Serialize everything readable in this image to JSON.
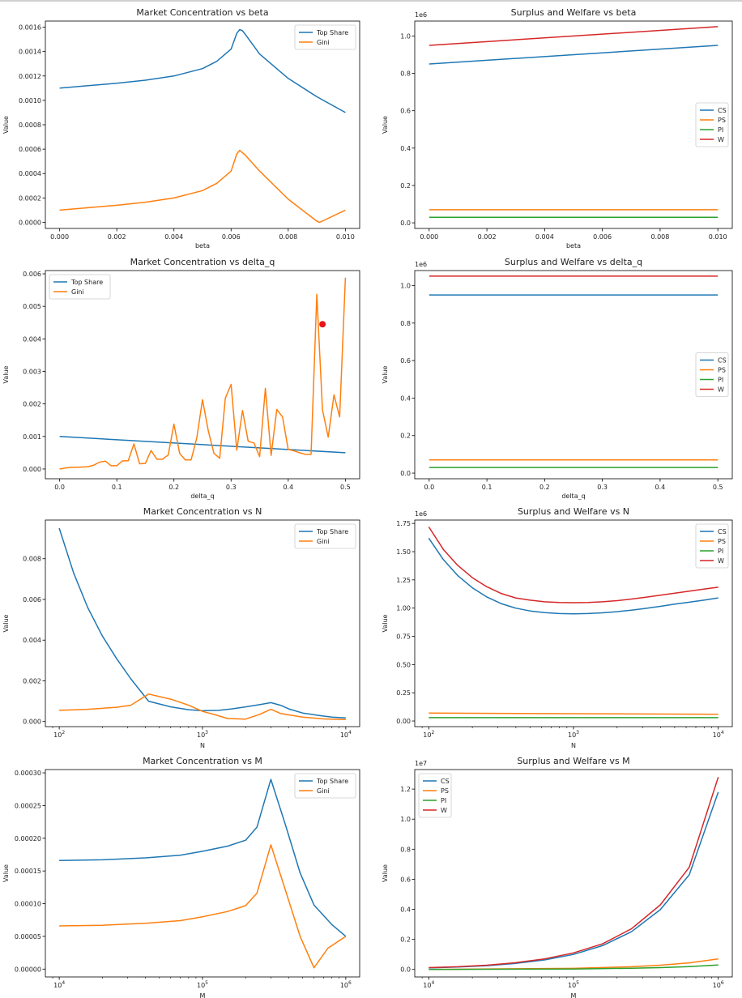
{
  "figure": {
    "domain": "multi-panel line charts"
  },
  "chart_data": [
    {
      "type": "line",
      "title": "Market Concentration vs beta",
      "xlabel": "beta",
      "ylabel": "Value",
      "xscale": "linear",
      "xlim": [
        -0.0005,
        0.0105
      ],
      "ylim": [
        -5e-05,
        0.00165
      ],
      "xticks": [
        0,
        0.002,
        0.004,
        0.006,
        0.008,
        0.01
      ],
      "xtick_labels": [
        "0.000",
        "0.002",
        "0.004",
        "0.006",
        "0.008",
        "0.010"
      ],
      "yticks": [
        0,
        0.0002,
        0.0004,
        0.0006,
        0.0008,
        0.001,
        0.0012,
        0.0014,
        0.0016
      ],
      "ytick_labels": [
        "0.0000",
        "0.0002",
        "0.0004",
        "0.0006",
        "0.0008",
        "0.0010",
        "0.0012",
        "0.0014",
        "0.0016"
      ],
      "offset_label": "",
      "legend_loc": "top-right",
      "series": [
        {
          "name": "Top Share",
          "color": "#1f77b4",
          "x": [
            0,
            0.001,
            0.002,
            0.003,
            0.004,
            0.005,
            0.0055,
            0.006,
            0.0062,
            0.0063,
            0.0064,
            0.0065,
            0.007,
            0.008,
            0.009,
            0.01
          ],
          "y": [
            0.0011,
            0.00112,
            0.00114,
            0.001165,
            0.0012,
            0.00126,
            0.00132,
            0.00142,
            0.00155,
            0.00158,
            0.00157,
            0.00154,
            0.00138,
            0.00118,
            0.00103,
            0.0009
          ]
        },
        {
          "name": "Gini",
          "color": "#ff7f0e",
          "x": [
            0,
            0.001,
            0.002,
            0.003,
            0.004,
            0.005,
            0.0055,
            0.006,
            0.0062,
            0.0063,
            0.0065,
            0.007,
            0.008,
            0.009,
            0.0091,
            0.01
          ],
          "y": [
            0.0001,
            0.00012,
            0.00014,
            0.000165,
            0.0002,
            0.00026,
            0.00032,
            0.00042,
            0.00056,
            0.00059,
            0.00055,
            0.00042,
            0.00019,
            1e-05,
            0.0,
            0.0001
          ]
        }
      ]
    },
    {
      "type": "line",
      "title": "Surplus and Welfare vs beta",
      "xlabel": "beta",
      "ylabel": "Value",
      "xscale": "linear",
      "xlim": [
        -0.0005,
        0.0105
      ],
      "ylim": [
        -0.03,
        1.08
      ],
      "xticks": [
        0,
        0.002,
        0.004,
        0.006,
        0.008,
        0.01
      ],
      "xtick_labels": [
        "0.000",
        "0.002",
        "0.004",
        "0.006",
        "0.008",
        "0.010"
      ],
      "yticks": [
        0,
        0.2,
        0.4,
        0.6,
        0.8,
        1.0
      ],
      "ytick_labels": [
        "0.0",
        "0.2",
        "0.4",
        "0.6",
        "0.8",
        "1.0"
      ],
      "offset_label": "1e6",
      "legend_loc": "center-right",
      "series": [
        {
          "name": "CS",
          "color": "#1f77b4",
          "x": [
            0,
            0.01
          ],
          "y": [
            0.85,
            0.95
          ]
        },
        {
          "name": "PS",
          "color": "#ff7f0e",
          "x": [
            0,
            0.01
          ],
          "y": [
            0.07,
            0.07
          ]
        },
        {
          "name": "PI",
          "color": "#2ca02c",
          "x": [
            0,
            0.01
          ],
          "y": [
            0.03,
            0.03
          ]
        },
        {
          "name": "W",
          "color": "#d62728",
          "x": [
            0,
            0.01
          ],
          "y": [
            0.95,
            1.05
          ]
        }
      ]
    },
    {
      "type": "line",
      "title": "Market Concentration vs delta_q",
      "xlabel": "delta_q",
      "ylabel": "Value",
      "xscale": "linear",
      "xlim": [
        -0.025,
        0.525
      ],
      "ylim": [
        -0.0003,
        0.0061
      ],
      "xticks": [
        0,
        0.1,
        0.2,
        0.3,
        0.4,
        0.5
      ],
      "xtick_labels": [
        "0.0",
        "0.1",
        "0.2",
        "0.3",
        "0.4",
        "0.5"
      ],
      "yticks": [
        0,
        0.001,
        0.002,
        0.003,
        0.004,
        0.005,
        0.006
      ],
      "ytick_labels": [
        "0.000",
        "0.001",
        "0.002",
        "0.003",
        "0.004",
        "0.005",
        "0.006"
      ],
      "offset_label": "",
      "legend_loc": "top-left",
      "markers": [
        {
          "x": 0.46,
          "y": 0.00445,
          "color": "#e8141b"
        }
      ],
      "series": [
        {
          "name": "Top Share",
          "color": "#1f77b4",
          "x": [
            0,
            0.5
          ],
          "y": [
            0.001,
            0.0005
          ]
        },
        {
          "name": "Gini",
          "color": "#ff7f0e",
          "x": [
            0,
            0.01,
            0.02,
            0.03,
            0.04,
            0.05,
            0.06,
            0.07,
            0.08,
            0.09,
            0.1,
            0.11,
            0.12,
            0.13,
            0.14,
            0.15,
            0.16,
            0.17,
            0.18,
            0.19,
            0.2,
            0.21,
            0.22,
            0.23,
            0.24,
            0.25,
            0.26,
            0.27,
            0.28,
            0.29,
            0.3,
            0.31,
            0.32,
            0.33,
            0.34,
            0.35,
            0.36,
            0.37,
            0.38,
            0.39,
            0.4,
            0.41,
            0.42,
            0.43,
            0.44,
            0.45,
            0.46,
            0.47,
            0.48,
            0.49,
            0.5
          ],
          "y": [
            0.0,
            3e-05,
            5e-05,
            5e-05,
            6e-05,
            7e-05,
            0.00012,
            0.00021,
            0.00024,
            0.0001,
            0.0001,
            0.00025,
            0.00025,
            0.00077,
            0.00016,
            0.00017,
            0.00057,
            0.0003,
            0.0003,
            0.00043,
            0.00138,
            0.00048,
            0.00028,
            0.00028,
            0.00095,
            0.00213,
            0.00118,
            0.00048,
            0.00033,
            0.00218,
            0.0026,
            0.00058,
            0.0018,
            0.00085,
            0.0008,
            0.00038,
            0.00248,
            0.00042,
            0.00183,
            0.0016,
            0.0006,
            0.00056,
            0.0005,
            0.00045,
            0.00045,
            0.00537,
            0.00182,
            0.00098,
            0.00228,
            0.0016,
            0.00588
          ]
        }
      ]
    },
    {
      "type": "line",
      "title": "Surplus and Welfare vs delta_q",
      "xlabel": "delta_q",
      "ylabel": "Value",
      "xscale": "linear",
      "xlim": [
        -0.025,
        0.525
      ],
      "ylim": [
        -0.03,
        1.08
      ],
      "xticks": [
        0,
        0.1,
        0.2,
        0.3,
        0.4,
        0.5
      ],
      "xtick_labels": [
        "0.0",
        "0.1",
        "0.2",
        "0.3",
        "0.4",
        "0.5"
      ],
      "yticks": [
        0,
        0.2,
        0.4,
        0.6,
        0.8,
        1.0
      ],
      "ytick_labels": [
        "0.0",
        "0.2",
        "0.4",
        "0.6",
        "0.8",
        "1.0"
      ],
      "offset_label": "1e6",
      "legend_loc": "center-right",
      "series": [
        {
          "name": "CS",
          "color": "#1f77b4",
          "x": [
            0,
            0.5
          ],
          "y": [
            0.95,
            0.95
          ]
        },
        {
          "name": "PS",
          "color": "#ff7f0e",
          "x": [
            0,
            0.5
          ],
          "y": [
            0.07,
            0.07
          ]
        },
        {
          "name": "PI",
          "color": "#2ca02c",
          "x": [
            0,
            0.5
          ],
          "y": [
            0.03,
            0.03
          ]
        },
        {
          "name": "W",
          "color": "#d62728",
          "x": [
            0,
            0.5
          ],
          "y": [
            1.05,
            1.05
          ]
        }
      ]
    },
    {
      "type": "line",
      "title": "Market Concentration vs N",
      "xlabel": "N",
      "ylabel": "Value",
      "xscale": "log",
      "xlim": [
        80,
        12500
      ],
      "ylim": [
        -0.00025,
        0.0099
      ],
      "xticks": [
        100,
        1000,
        10000
      ],
      "xtick_labels": [
        "10",
        "10",
        "10"
      ],
      "xtick_exps": [
        "2",
        "3",
        "4"
      ],
      "yticks": [
        0,
        0.002,
        0.004,
        0.006,
        0.008
      ],
      "ytick_labels": [
        "0.000",
        "0.002",
        "0.004",
        "0.006",
        "0.008"
      ],
      "offset_label": "",
      "legend_loc": "top-right",
      "series": [
        {
          "name": "Top Share",
          "color": "#1f77b4",
          "x": [
            100,
            126,
            158,
            200,
            251,
            316,
            420,
            600,
            800,
            1000,
            1300,
            1600,
            2000,
            2500,
            3000,
            3500,
            4000,
            5000,
            6500,
            8000,
            10000
          ],
          "y": [
            0.0095,
            0.0073,
            0.0056,
            0.0042,
            0.0031,
            0.0021,
            0.001,
            0.00072,
            0.00058,
            0.00053,
            0.00055,
            0.00062,
            0.00072,
            0.00083,
            0.00093,
            0.0008,
            0.00062,
            0.00042,
            0.0003,
            0.00022,
            0.00018
          ]
        },
        {
          "name": "Gini",
          "color": "#ff7f0e",
          "x": [
            100,
            158,
            251,
            316,
            420,
            600,
            800,
            1000,
            1200,
            1500,
            2000,
            2500,
            3000,
            3500,
            5000,
            7000,
            10000
          ],
          "y": [
            0.00055,
            0.0006,
            0.0007,
            0.0008,
            0.00135,
            0.0011,
            0.0008,
            0.0005,
            0.00035,
            0.00015,
            0.00012,
            0.00035,
            0.0006,
            0.0004,
            0.00022,
            0.00013,
            0.0001
          ]
        }
      ]
    },
    {
      "type": "line",
      "title": "Surplus and Welfare vs N",
      "xlabel": "N",
      "ylabel": "Value",
      "xscale": "log",
      "xlim": [
        80,
        12500
      ],
      "ylim": [
        -0.05,
        1.78
      ],
      "xticks": [
        100,
        1000,
        10000
      ],
      "xtick_labels": [
        "10",
        "10",
        "10"
      ],
      "xtick_exps": [
        "2",
        "3",
        "4"
      ],
      "yticks": [
        0,
        0.25,
        0.5,
        0.75,
        1.0,
        1.25,
        1.5,
        1.75
      ],
      "ytick_labels": [
        "0.00",
        "0.25",
        "0.50",
        "0.75",
        "1.00",
        "1.25",
        "1.50",
        "1.75"
      ],
      "offset_label": "1e6",
      "legend_loc": "top-right",
      "series": [
        {
          "name": "CS",
          "color": "#1f77b4",
          "x": [
            100,
            126,
            158,
            200,
            251,
            316,
            398,
            501,
            631,
            794,
            1000,
            1259,
            1585,
            1995,
            2512,
            3162,
            3981,
            5012,
            6310,
            7943,
            10000
          ],
          "y": [
            1.62,
            1.43,
            1.29,
            1.18,
            1.1,
            1.04,
            1.0,
            0.975,
            0.96,
            0.952,
            0.95,
            0.952,
            0.958,
            0.968,
            0.982,
            0.998,
            1.016,
            1.035,
            1.052,
            1.07,
            1.09
          ]
        },
        {
          "name": "PS",
          "color": "#ff7f0e",
          "x": [
            100,
            10000
          ],
          "y": [
            0.07,
            0.06
          ]
        },
        {
          "name": "PI",
          "color": "#2ca02c",
          "x": [
            100,
            10000
          ],
          "y": [
            0.03,
            0.03
          ]
        },
        {
          "name": "W",
          "color": "#d62728",
          "x": [
            100,
            126,
            158,
            200,
            251,
            316,
            398,
            501,
            631,
            794,
            1000,
            1259,
            1585,
            1995,
            2512,
            3162,
            3981,
            5012,
            6310,
            7943,
            10000
          ],
          "y": [
            1.72,
            1.52,
            1.38,
            1.27,
            1.19,
            1.13,
            1.09,
            1.07,
            1.056,
            1.05,
            1.048,
            1.05,
            1.056,
            1.066,
            1.08,
            1.096,
            1.114,
            1.132,
            1.15,
            1.168,
            1.185
          ]
        }
      ]
    },
    {
      "type": "line",
      "title": "Market Concentration vs M",
      "xlabel": "M",
      "ylabel": "Value",
      "xscale": "log",
      "xlim": [
        8000,
        1250000
      ],
      "ylim": [
        -1.2e-05,
        0.000305
      ],
      "xticks": [
        10000,
        100000,
        1000000
      ],
      "xtick_labels": [
        "10",
        "10",
        "10"
      ],
      "xtick_exps": [
        "4",
        "5",
        "6"
      ],
      "yticks": [
        0,
        5e-05,
        0.0001,
        0.00015,
        0.0002,
        0.00025,
        0.0003
      ],
      "ytick_labels": [
        "0.00000",
        "0.00005",
        "0.00010",
        "0.00015",
        "0.00020",
        "0.00025",
        "0.00030"
      ],
      "offset_label": "",
      "legend_loc": "top-right",
      "series": [
        {
          "name": "Top Share",
          "color": "#1f77b4",
          "x": [
            10000,
            20000,
            40000,
            70000,
            100000,
            150000,
            200000,
            240000,
            300000,
            380000,
            480000,
            600000,
            800000,
            1000000
          ],
          "y": [
            0.000166,
            0.000167,
            0.00017,
            0.000174,
            0.00018,
            0.000188,
            0.000197,
            0.000217,
            0.00029,
            0.00022,
            0.000147,
            9.8e-05,
            6.8e-05,
            5e-05
          ]
        },
        {
          "name": "Gini",
          "color": "#ff7f0e",
          "x": [
            10000,
            20000,
            40000,
            70000,
            100000,
            150000,
            200000,
            240000,
            300000,
            380000,
            480000,
            600000,
            750000,
            1000000
          ],
          "y": [
            6.6e-05,
            6.7e-05,
            7e-05,
            7.4e-05,
            8e-05,
            8.8e-05,
            9.7e-05,
            0.000116,
            0.00019,
            0.00012,
            5e-05,
            2e-06,
            3.2e-05,
            5e-05
          ]
        }
      ]
    },
    {
      "type": "line",
      "title": "Surplus and Welfare vs M",
      "xlabel": "M",
      "ylabel": "Value",
      "xscale": "log",
      "xlim": [
        8000,
        1250000
      ],
      "ylim": [
        -0.05,
        1.33
      ],
      "xticks": [
        10000,
        100000,
        1000000
      ],
      "xtick_labels": [
        "10",
        "10",
        "10"
      ],
      "xtick_exps": [
        "4",
        "5",
        "6"
      ],
      "yticks": [
        0,
        0.2,
        0.4,
        0.6,
        0.8,
        1.0,
        1.2
      ],
      "ytick_labels": [
        "0.0",
        "0.2",
        "0.4",
        "0.6",
        "0.8",
        "1.0",
        "1.2"
      ],
      "offset_label": "1e7",
      "legend_loc": "top-left",
      "series": [
        {
          "name": "CS",
          "color": "#1f77b4",
          "x": [
            10000,
            15849,
            25119,
            39811,
            63096,
            100000,
            158489,
            251189,
            398107,
            630957,
            1000000
          ],
          "y": [
            0.01,
            0.016,
            0.025,
            0.04,
            0.063,
            0.1,
            0.158,
            0.251,
            0.398,
            0.63,
            1.18
          ]
        },
        {
          "name": "PS",
          "color": "#ff7f0e",
          "x": [
            10000,
            100000,
            251189,
            398107,
            630957,
            1000000
          ],
          "y": [
            0.0,
            0.007,
            0.018,
            0.028,
            0.044,
            0.07
          ]
        },
        {
          "name": "PI",
          "color": "#2ca02c",
          "x": [
            10000,
            100000,
            251189,
            398107,
            630957,
            1000000
          ],
          "y": [
            0.0,
            0.003,
            0.008,
            0.012,
            0.019,
            0.03
          ]
        },
        {
          "name": "W",
          "color": "#d62728",
          "x": [
            10000,
            15849,
            25119,
            39811,
            63096,
            100000,
            158489,
            251189,
            398107,
            630957,
            1000000
          ],
          "y": [
            0.012,
            0.018,
            0.028,
            0.045,
            0.07,
            0.11,
            0.17,
            0.27,
            0.43,
            0.68,
            1.28
          ]
        }
      ]
    }
  ]
}
